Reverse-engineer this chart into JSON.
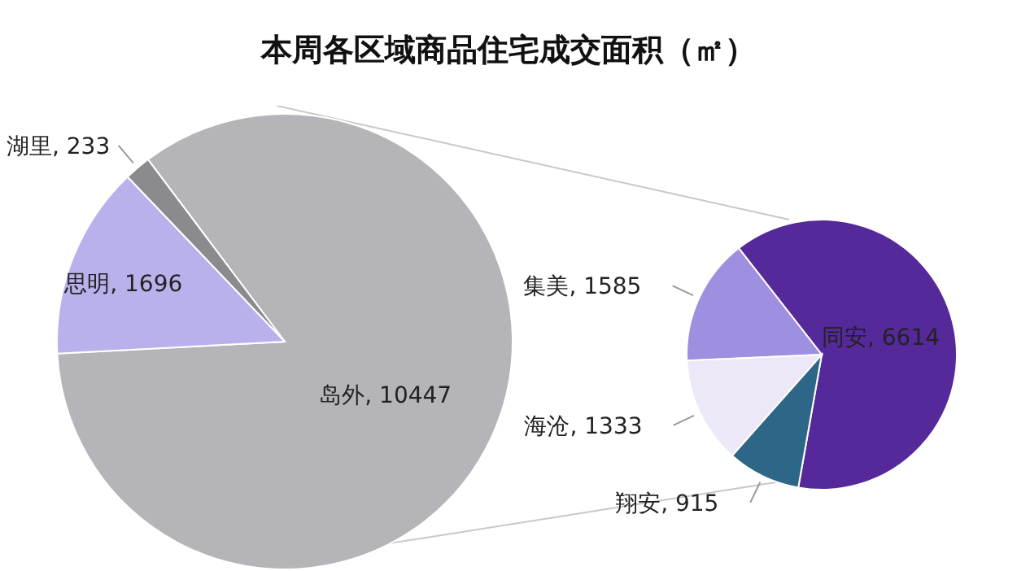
{
  "chart_data": [
    {
      "type": "pie",
      "title": "本周各区域商品住宅成交面积（㎡）",
      "categories": [
        "岛外",
        "湖里",
        "思明"
      ],
      "values": [
        10447,
        233,
        1696
      ],
      "colors": [
        "#b5b4b9",
        "#8b8b8e",
        "#b9b1ec"
      ],
      "value_labels": [
        ", 10447",
        ", 233",
        ", 1696"
      ]
    },
    {
      "type": "pie",
      "categories": [
        "同安",
        "集美",
        "海沧",
        "翔安"
      ],
      "values": [
        6614,
        1585,
        1333,
        915
      ],
      "colors": [
        "#55299a",
        "#9f8fe0",
        "#ece8f7",
        "#2e6688"
      ],
      "value_labels": [
        ", 6614",
        ", 1585",
        ", 1333",
        ", 915"
      ]
    }
  ]
}
